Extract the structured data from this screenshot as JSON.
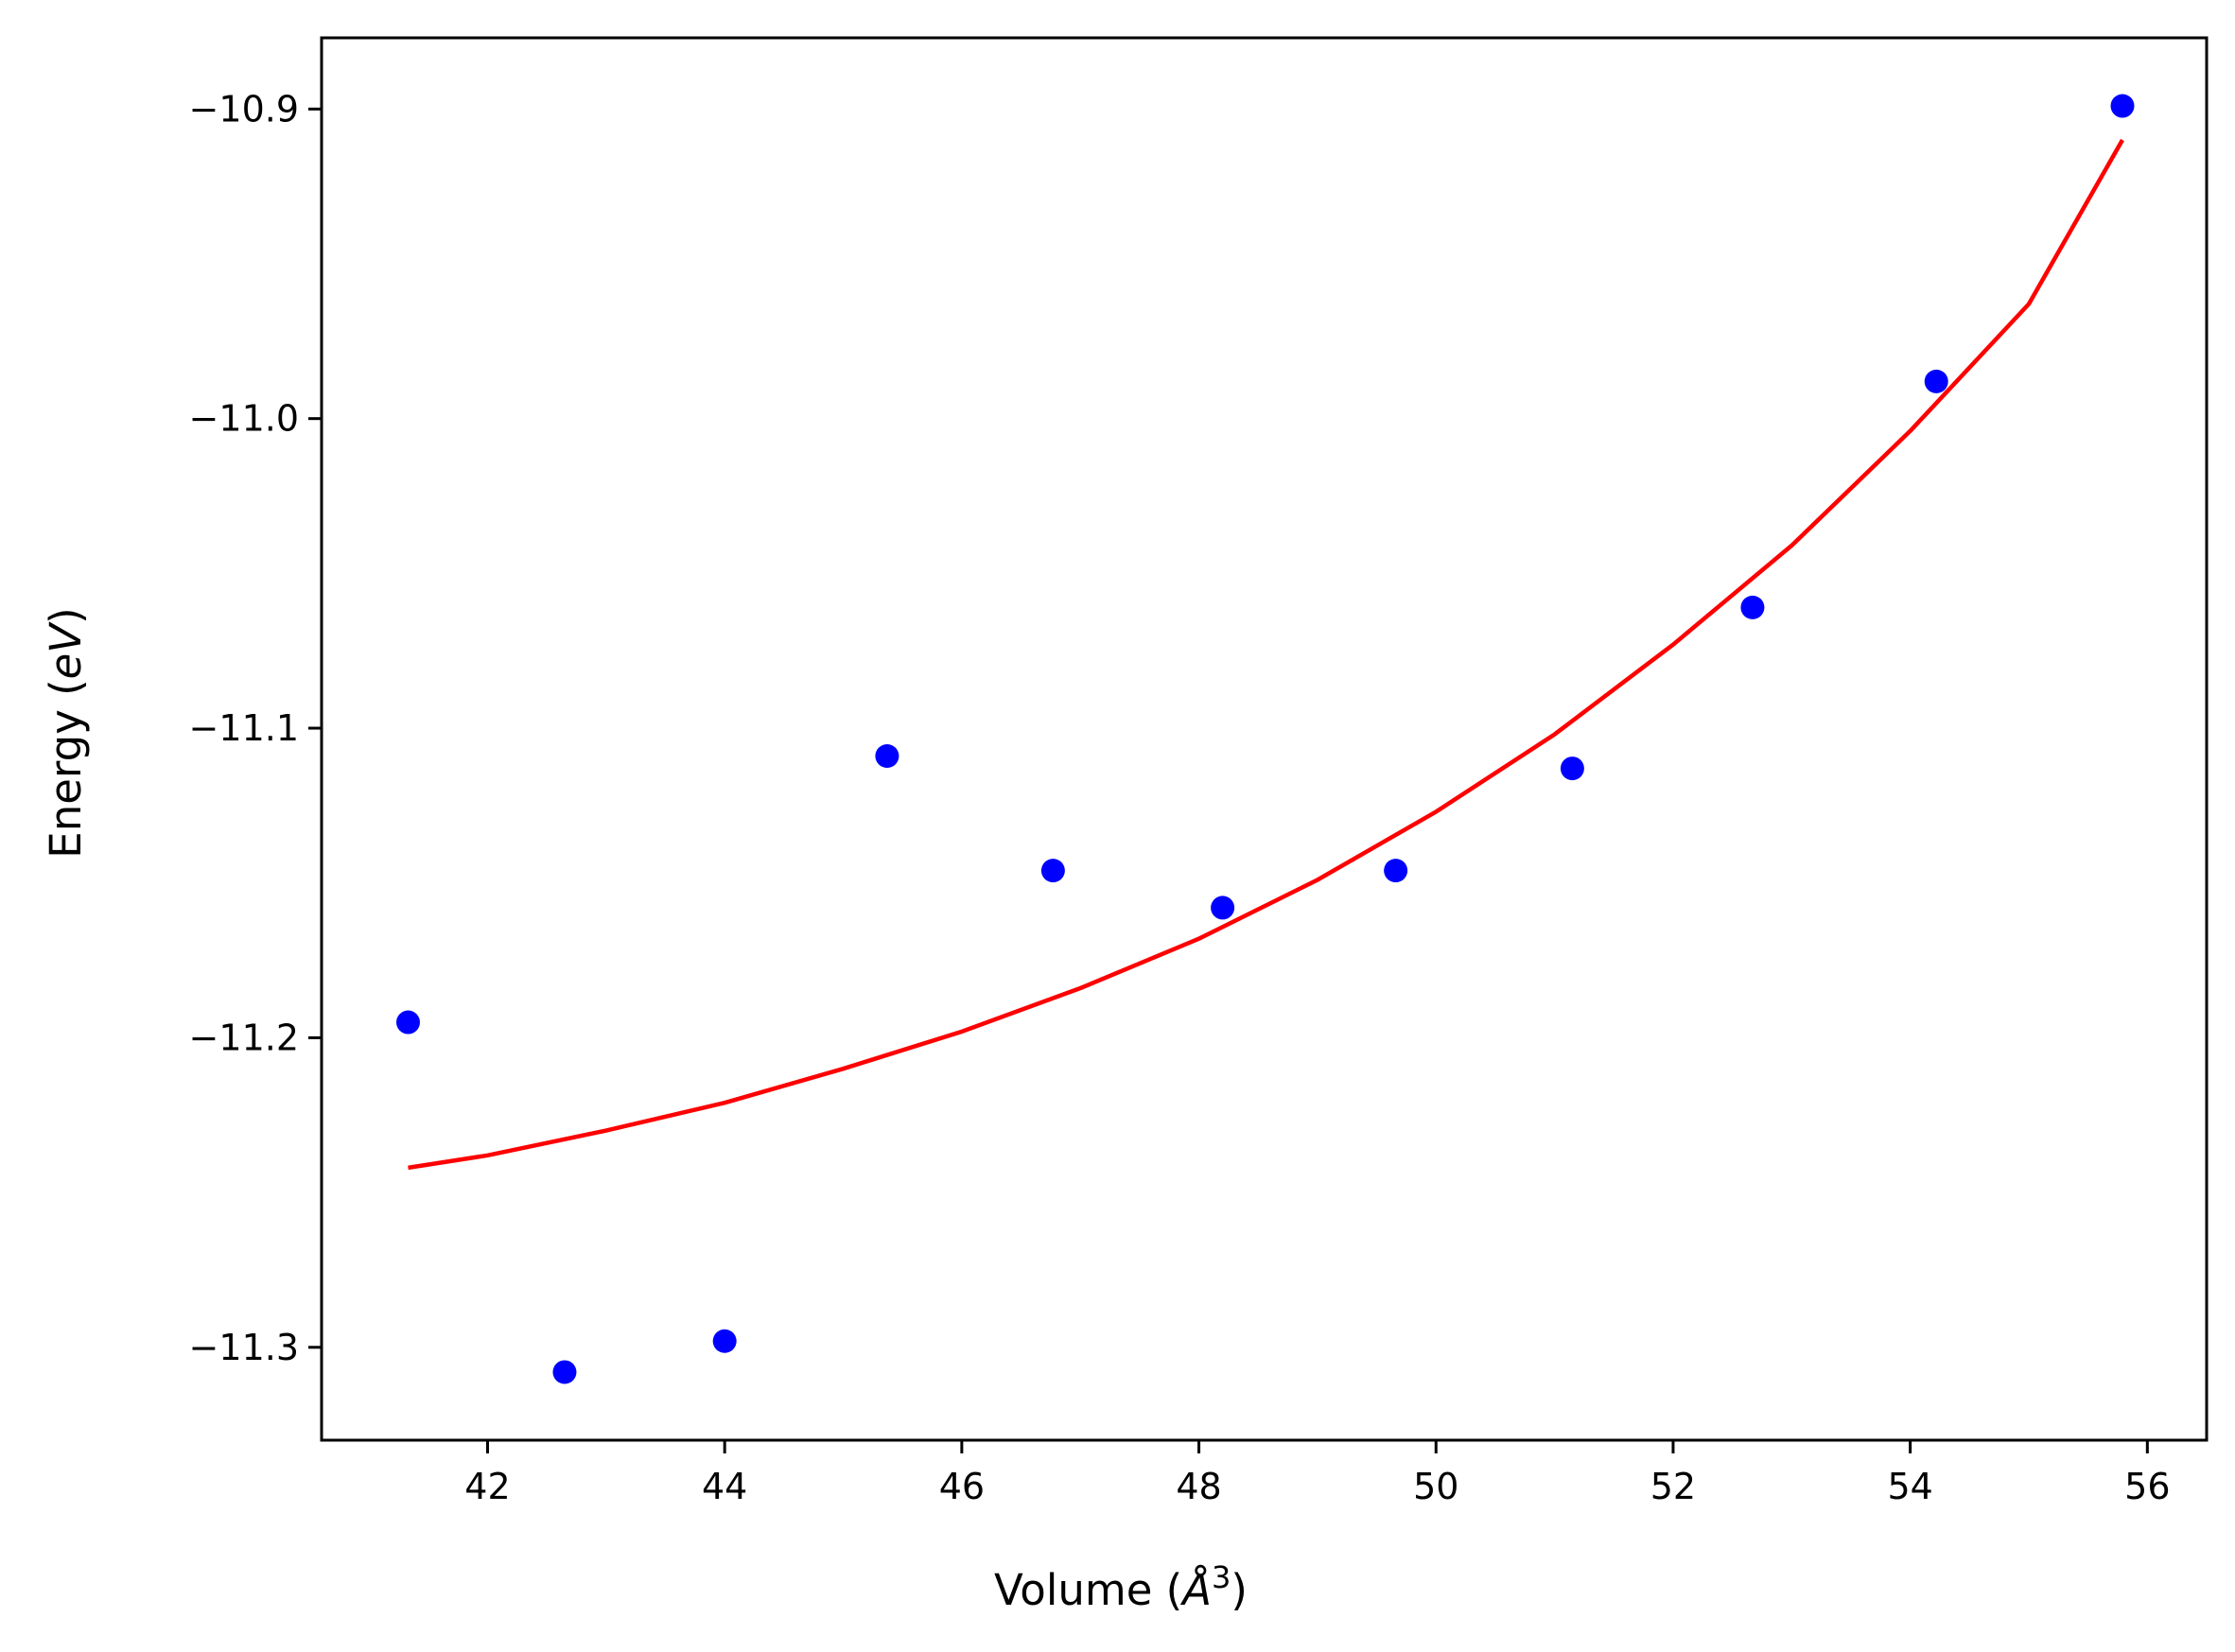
{
  "chart_data": {
    "type": "scatter",
    "xlabel_parts": {
      "main": "Volume (",
      "unit": "Å",
      "exp": "3",
      "close": ")"
    },
    "ylabel_parts": {
      "main": "Energy (",
      "unit": "eV",
      "close": ")"
    },
    "xlim": [
      40.6,
      56.5
    ],
    "ylim": [
      -11.33,
      -10.877
    ],
    "x_ticks": [
      42,
      44,
      46,
      48,
      50,
      52,
      54,
      56
    ],
    "x_tick_labels": [
      "42",
      "44",
      "46",
      "48",
      "50",
      "52",
      "54",
      "56"
    ],
    "y_ticks": [
      -10.9,
      -11.0,
      -11.1,
      -11.2,
      -11.3
    ],
    "y_tick_labels": [
      "−10.9",
      "−11.0",
      "−11.1",
      "−11.2",
      "−11.3"
    ],
    "grid": false,
    "series": [
      {
        "kind": "points",
        "color": "#0000ff",
        "x": [
          41.33,
          42.65,
          44.0,
          45.37,
          46.77,
          48.2,
          49.66,
          51.15,
          52.67,
          54.22,
          55.79
        ],
        "y": [
          -11.195,
          -11.308,
          -11.298,
          -11.109,
          -11.146,
          -11.158,
          -11.146,
          -11.113,
          -11.061,
          -10.988,
          -10.899
        ]
      },
      {
        "kind": "fit-line",
        "color": "#ff0000",
        "x": [
          41.33,
          42.0,
          43.0,
          44.0,
          45.0,
          46.0,
          47.0,
          48.0,
          49.0,
          50.0,
          51.0,
          52.0,
          53.0,
          54.0,
          55.0,
          55.79
        ],
        "y": [
          -11.242,
          -11.238,
          -11.23,
          -11.221,
          -11.21,
          -11.198,
          -11.184,
          -11.168,
          -11.149,
          -11.127,
          -11.102,
          -11.073,
          -11.041,
          -11.004,
          -10.963,
          -10.91
        ]
      }
    ]
  }
}
